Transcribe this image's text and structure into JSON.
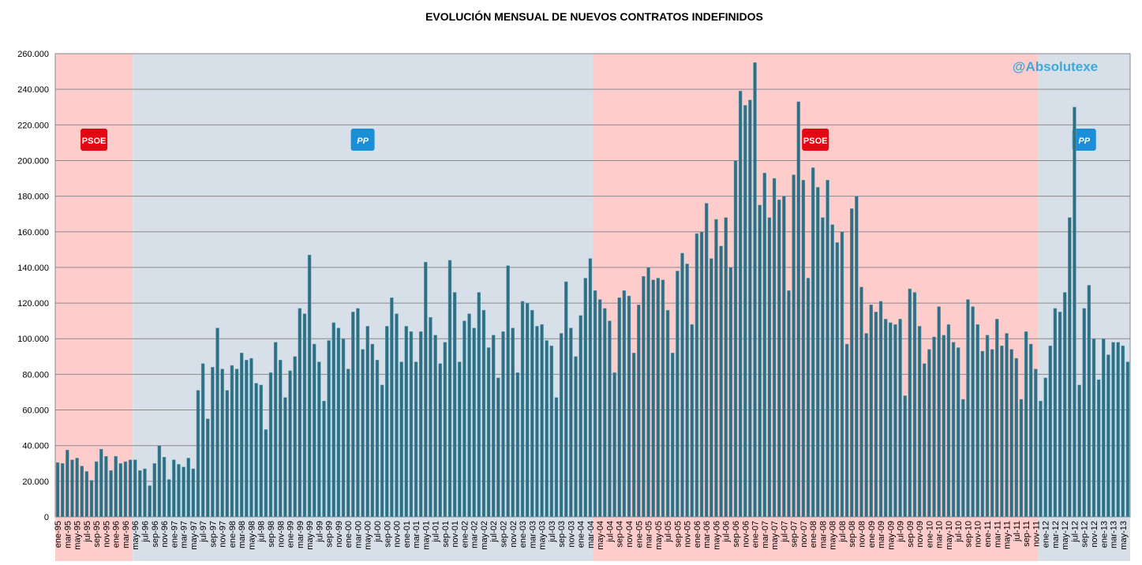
{
  "chart_data": {
    "type": "bar",
    "title": "EVOLUCIÓN MENSUAL DE NUEVOS CONTRATOS INDEFINIDOS",
    "watermark": "@Absolutexe",
    "color": "#2f6f84",
    "grid": true,
    "ylim": [
      0,
      260000
    ],
    "yticks": [
      0,
      {
        "value": 20000,
        "label": "20.000"
      },
      {
        "value": 40000,
        "label": "40.000"
      },
      {
        "value": 60000,
        "label": "60.000"
      },
      {
        "value": 80000,
        "label": "80.000"
      },
      {
        "value": 100000,
        "label": "100.000"
      },
      {
        "value": 120000,
        "label": "120.000"
      },
      {
        "value": 140000,
        "label": "140.000"
      },
      {
        "value": 160000,
        "label": "160.000"
      },
      {
        "value": 180000,
        "label": "180.000"
      },
      {
        "value": 200000,
        "label": "200.000"
      },
      {
        "value": 220000,
        "label": "220.000"
      },
      {
        "value": 240000,
        "label": "240.000"
      },
      {
        "value": 260000,
        "label": "260.000"
      }
    ],
    "bands": [
      {
        "label": "PSOE",
        "from": 0,
        "to": 15,
        "color": "#ffcccc"
      },
      {
        "label": "PP",
        "from": 16,
        "to": 110,
        "color": "#d7dfe8"
      },
      {
        "label": "PSOE",
        "from": 111,
        "to": 202,
        "color": "#ffcccc"
      },
      {
        "label": "PP",
        "from": 203,
        "to": 221,
        "color": "#d7dfe8"
      }
    ],
    "categories": [
      "ene-95",
      null,
      "mar-95",
      null,
      "may-95",
      null,
      "jul-95",
      null,
      "sep-95",
      null,
      "nov-95",
      null,
      "ene-96",
      null,
      "mar-96",
      null,
      "may-96",
      null,
      "jul-96",
      null,
      "sep-96",
      null,
      "nov-96",
      null,
      "ene-97",
      null,
      "mar-97",
      null,
      "may-97",
      null,
      "jul-97",
      null,
      "sep-97",
      null,
      "nov-97",
      null,
      "ene-98",
      null,
      "mar-98",
      null,
      "may-98",
      null,
      "jul-98",
      null,
      "sep-98",
      null,
      "nov-98",
      null,
      "ene-99",
      null,
      "mar-99",
      null,
      "may-99",
      null,
      "jul-99",
      null,
      "sep-99",
      null,
      "nov-99",
      null,
      "ene-00",
      null,
      "mar-00",
      null,
      "may-00",
      null,
      "jul-00",
      null,
      "sep-00",
      null,
      "nov-00",
      null,
      "ene-01",
      null,
      "mar-01",
      null,
      "may-01",
      null,
      "jul-01",
      null,
      "sep-01",
      null,
      "nov-01",
      null,
      "ene-02",
      null,
      "mar-02",
      null,
      "may-02",
      null,
      "jul-02",
      null,
      "sep-02",
      null,
      "nov-02",
      null,
      "ene-03",
      null,
      "mar-03",
      null,
      "may-03",
      null,
      "jul-03",
      null,
      "sep-03",
      null,
      "nov-03",
      null,
      "ene-04",
      null,
      "mar-04",
      null,
      "may-04",
      null,
      "jul-04",
      null,
      "sep-04",
      null,
      "nov-04",
      null,
      "ene-05",
      null,
      "mar-05",
      null,
      "may-05",
      null,
      "jul-05",
      null,
      "sep-05",
      null,
      "nov-05",
      null,
      "ene-06",
      null,
      "mar-06",
      null,
      "may-06",
      null,
      "jul-06",
      null,
      "sep-06",
      null,
      "nov-06",
      null,
      "ene-07",
      null,
      "mar-07",
      null,
      "may-07",
      null,
      "jul-07",
      null,
      "sep-07",
      null,
      "nov-07",
      null,
      "ene-08",
      null,
      "mar-08",
      null,
      "may-08",
      null,
      "jul-08",
      null,
      "sep-08",
      null,
      "nov-08",
      null,
      "ene-09",
      null,
      "mar-09",
      null,
      "may-09",
      null,
      "jul-09",
      null,
      "sep-09",
      null,
      "nov-09",
      null,
      "ene-10",
      null,
      "mar-10",
      null,
      "may-10",
      null,
      "jul-10",
      null,
      "sep-10",
      null,
      "nov-10",
      null,
      "ene-11",
      null,
      "mar-11",
      null,
      "may-11",
      null,
      "jul-11",
      null,
      "sep-11",
      null,
      "nov-11",
      null,
      "ene-12",
      null,
      "mar-12",
      null,
      "may-12",
      null,
      "jul-12",
      null,
      "sep-12",
      null,
      "nov-12",
      null,
      "ene-13",
      null,
      "mar-13",
      null,
      "may-13",
      null
    ],
    "values": [
      30500,
      30000,
      37500,
      32000,
      33000,
      28500,
      25500,
      20500,
      31000,
      38000,
      34000,
      26000,
      34000,
      30000,
      31000,
      32000,
      32000,
      26000,
      27000,
      17500,
      30000,
      40000,
      33500,
      21000,
      32000,
      29500,
      28000,
      33000,
      27000,
      71000,
      86000,
      55000,
      84000,
      106000,
      83000,
      71000,
      85000,
      83000,
      92000,
      88000,
      89000,
      75000,
      74000,
      49000,
      81000,
      98000,
      88000,
      67000,
      82000,
      90000,
      117000,
      114000,
      147000,
      97000,
      87000,
      65000,
      99000,
      109000,
      106000,
      100000,
      83000,
      115000,
      117000,
      94000,
      107000,
      97000,
      88000,
      74000,
      107000,
      123000,
      114000,
      87000,
      107000,
      104000,
      87000,
      104000,
      143000,
      112000,
      102000,
      86000,
      98000,
      144000,
      126000,
      87000,
      110000,
      114000,
      106000,
      126000,
      116000,
      95000,
      102000,
      78000,
      104000,
      141000,
      106000,
      81000,
      121000,
      120000,
      116000,
      107000,
      108000,
      99000,
      96000,
      67000,
      103000,
      132000,
      106000,
      90000,
      113000,
      134000,
      145000,
      127000,
      122000,
      117000,
      110000,
      81000,
      123000,
      127000,
      124000,
      92000,
      119000,
      135000,
      140000,
      133000,
      134000,
      133000,
      116000,
      92000,
      138000,
      148000,
      142000,
      108000,
      159000,
      160000,
      176000,
      145000,
      167000,
      152000,
      168000,
      140000,
      200000,
      239000,
      231000,
      234000,
      255000,
      175000,
      193000,
      168000,
      190000,
      178000,
      180000,
      127000,
      192000,
      233000,
      189000,
      134000,
      196000,
      185000,
      168000,
      189000,
      164000,
      154000,
      160000,
      97000,
      173000,
      180000,
      129000,
      103000,
      119000,
      115000,
      121000,
      111000,
      109000,
      108000,
      111000,
      68000,
      128000,
      126000,
      107000,
      86000,
      94000,
      101000,
      118000,
      102000,
      108000,
      98000,
      95000,
      66000,
      122000,
      118000,
      108000,
      93000,
      102000,
      94000,
      111000,
      96000,
      103000,
      94000,
      89000,
      66000,
      104000,
      97000,
      83000,
      65000,
      78000,
      96000,
      117000,
      115000,
      126000,
      168000,
      230000,
      74000,
      117000,
      130000,
      100000,
      77000,
      100000,
      91000,
      98000,
      98000,
      96000,
      87000
    ]
  }
}
